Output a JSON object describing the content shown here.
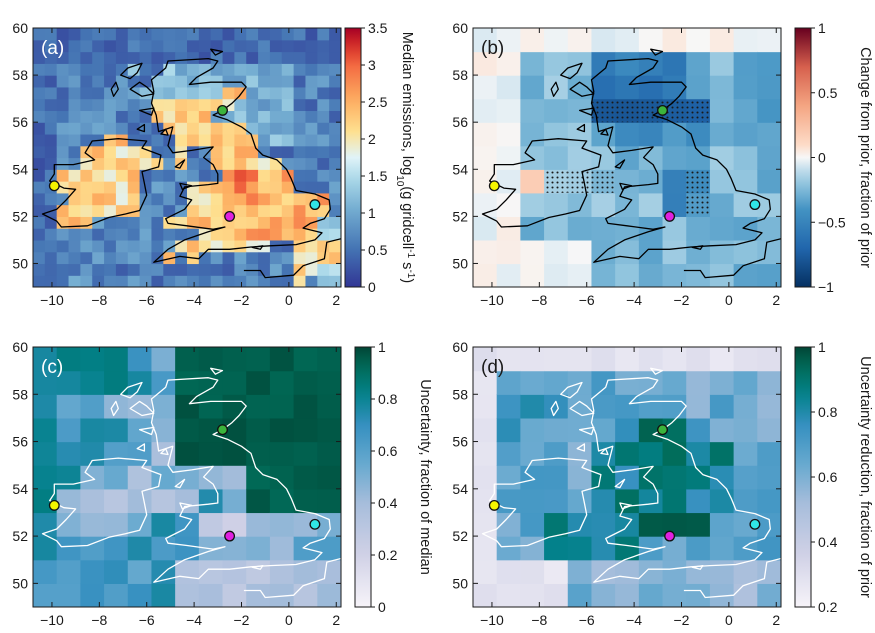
{
  "chart_data": [
    {
      "panel": "(a)",
      "type": "heatmap",
      "xlim": [
        -10.8,
        2.2
      ],
      "ylim": [
        49,
        60
      ],
      "xticks": [
        -10,
        -8,
        -6,
        -4,
        -2,
        0,
        2
      ],
      "yticks": [
        50,
        52,
        54,
        56,
        58,
        60
      ],
      "colorbar": {
        "label": "Median emissions, log10(g gridcell-1 s-1)",
        "range": [
          0,
          3.5
        ],
        "ticks": [
          "0",
          "0.5",
          "1",
          "1.5",
          "2",
          "2.5",
          "3",
          "3.5"
        ],
        "colormap": "diverging-blue-red"
      },
      "coast_color": "#000000",
      "stipple": false
    },
    {
      "panel": "(b)",
      "type": "heatmap",
      "xlim": [
        -10.8,
        2.2
      ],
      "ylim": [
        49,
        60
      ],
      "xticks": [
        -10,
        -8,
        -6,
        -4,
        -2,
        0,
        2
      ],
      "yticks": [
        50,
        52,
        54,
        56,
        58,
        60
      ],
      "colorbar": {
        "label": "Change from prior, fraction of prior",
        "range": [
          -1,
          1
        ],
        "ticks": [
          "−1",
          "−0.5",
          "0",
          "0.5",
          "1"
        ],
        "colormap": "diverging-blue-white-red"
      },
      "coast_color": "#000000",
      "stipple": true
    },
    {
      "panel": "(c)",
      "type": "heatmap",
      "xlim": [
        -10.8,
        2.2
      ],
      "ylim": [
        49,
        60
      ],
      "xticks": [
        -10,
        -8,
        -6,
        -4,
        -2,
        0,
        2
      ],
      "yticks": [
        50,
        52,
        54,
        56,
        58,
        60
      ],
      "colorbar": {
        "label": "Uncertainty, fraction of median",
        "range": [
          0,
          1
        ],
        "ticks": [
          "0",
          "0.2",
          "0.4",
          "0.6",
          "0.8",
          "1"
        ],
        "colormap": "white-blue-green"
      },
      "coast_color": "#ffffff",
      "stipple": false
    },
    {
      "panel": "(d)",
      "type": "heatmap",
      "xlim": [
        -10.8,
        2.2
      ],
      "ylim": [
        49,
        60
      ],
      "xticks": [
        -10,
        -8,
        -6,
        -4,
        -2,
        0,
        2
      ],
      "yticks": [
        50,
        52,
        54,
        56,
        58,
        60
      ],
      "colorbar": {
        "label": "Uncertainty reduction, fraction of prior",
        "range": [
          0.2,
          1
        ],
        "ticks": [
          "0.2",
          "0.4",
          "0.6",
          "0.8",
          "1"
        ],
        "colormap": "white-blue-green"
      },
      "coast_color": "#ffffff",
      "stipple": false
    }
  ],
  "stations": [
    {
      "lon": -9.9,
      "lat": 53.3,
      "color": "#f5f500"
    },
    {
      "lon": -2.5,
      "lat": 52.0,
      "color": "#e020e0"
    },
    {
      "lon": -2.8,
      "lat": 56.5,
      "color": "#3cb43c"
    },
    {
      "lon": 1.1,
      "lat": 52.5,
      "color": "#30e6e6"
    }
  ]
}
